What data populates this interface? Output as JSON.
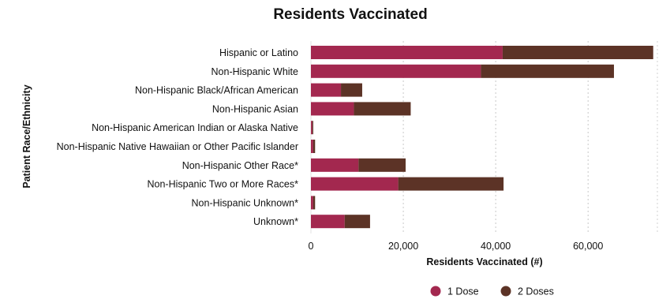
{
  "chart_data": {
    "type": "bar",
    "orientation": "horizontal",
    "stacked": true,
    "title": "Residents Vaccinated",
    "xlabel": "Residents Vaccinated (#)",
    "ylabel": "Patient Race/Ethnicity",
    "xlim": [
      0,
      75000
    ],
    "xticks": [
      0,
      20000,
      40000,
      60000
    ],
    "xtick_labels": [
      "0",
      "20,000",
      "40,000",
      "60,000"
    ],
    "grid": "vertical dotted",
    "legend_position": "bottom",
    "categories": [
      "Hispanic or Latino",
      "Non-Hispanic White",
      "Non-Hispanic Black/African American",
      "Non-Hispanic Asian",
      "Non-Hispanic American Indian or Alaska Native",
      "Non-Hispanic Native Hawaiian or Other Pacific Islander",
      "Non-Hispanic Other Race*",
      "Non-Hispanic Two or More Races*",
      "Non-Hispanic Unknown*",
      "Unknown*"
    ],
    "series": [
      {
        "name": "1 Dose",
        "color": "#a3284f",
        "values": [
          41500,
          36800,
          6500,
          9300,
          300,
          500,
          10300,
          18900,
          500,
          7300
        ]
      },
      {
        "name": "2 Doses",
        "color": "#5c3326",
        "values": [
          32600,
          28800,
          4600,
          12300,
          200,
          400,
          10200,
          22800,
          400,
          5500
        ]
      }
    ]
  }
}
